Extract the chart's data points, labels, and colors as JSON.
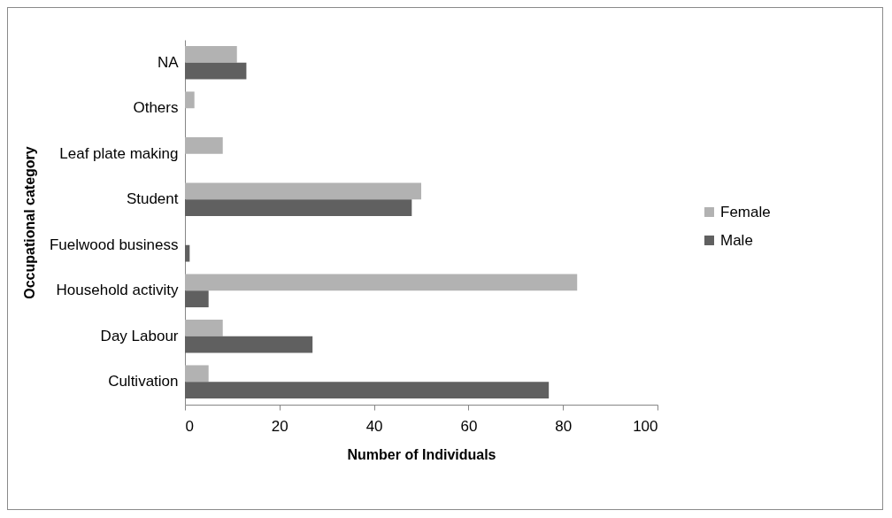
{
  "chart_data": {
    "type": "bar",
    "orientation": "horizontal",
    "xlabel": "Number of Individuals",
    "ylabel": "Occupational category",
    "categories": [
      "NA",
      "Others",
      "Leaf plate making",
      "Student",
      "Fuelwood business",
      "Household activity",
      "Day Labour",
      "Cultivation"
    ],
    "series": [
      {
        "name": "Female",
        "color": "#b2b2b2",
        "values": [
          11,
          2,
          8,
          50,
          0,
          83,
          8,
          5
        ]
      },
      {
        "name": "Male",
        "color": "#606060",
        "values": [
          13,
          0,
          0,
          48,
          1,
          5,
          27,
          77
        ]
      }
    ],
    "xlim": [
      0,
      100
    ],
    "xticks": [
      0,
      20,
      40,
      60,
      80,
      100
    ],
    "grid": false,
    "legend": "right"
  }
}
